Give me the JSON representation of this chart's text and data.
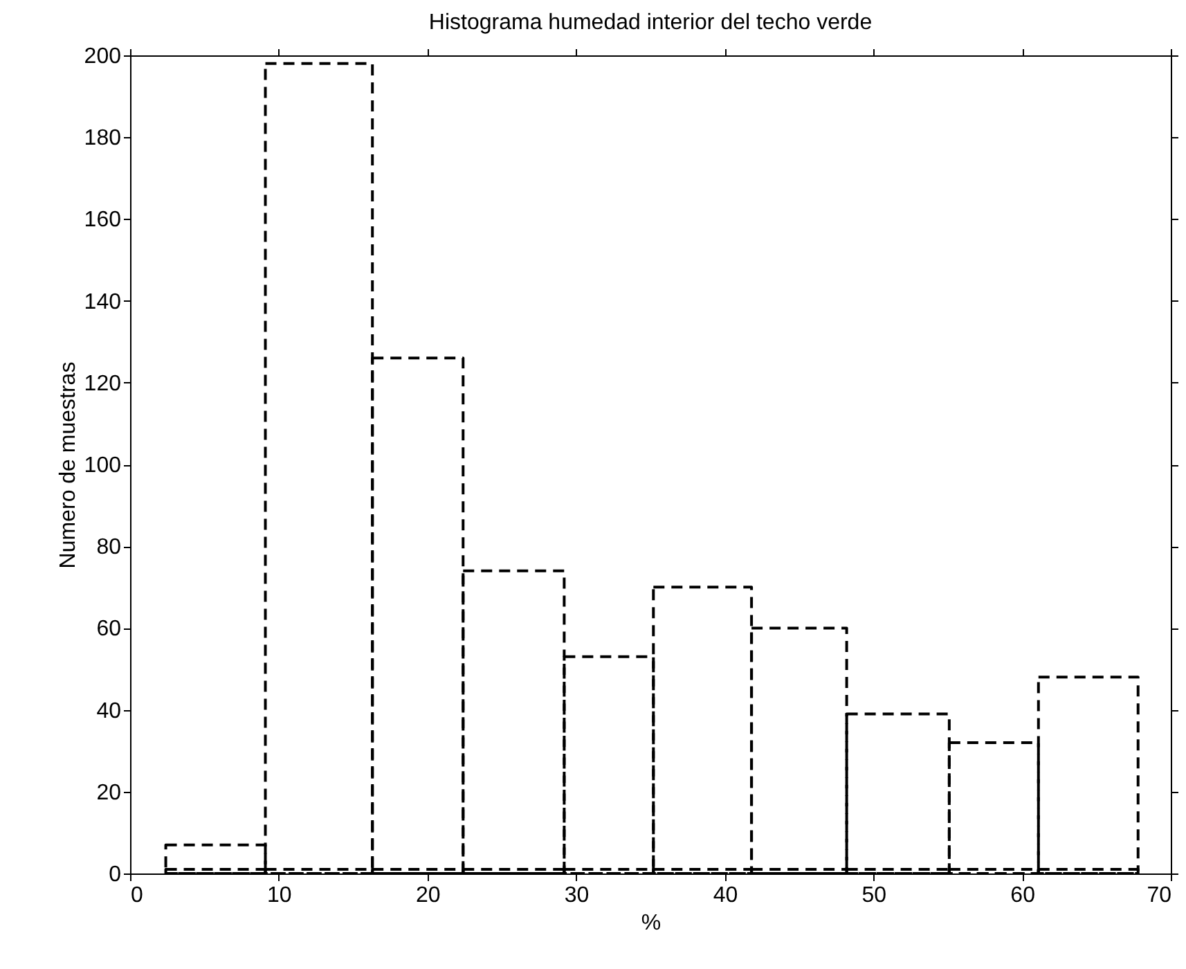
{
  "chart_data": {
    "type": "histogram",
    "title": "Histograma humedad interior del techo verde",
    "xlabel": "%",
    "ylabel": "Numero de muestras",
    "bins": [
      2.4,
      9.1,
      16.3,
      22.4,
      29.2,
      35.2,
      41.8,
      48.2,
      55.1,
      61.1,
      67.8
    ],
    "series": [
      {
        "color": "#000000",
        "line_style": "dashed",
        "values": [
          7,
          198,
          126,
          74,
          53,
          70,
          60,
          39,
          32,
          48
        ]
      },
      {
        "color": "#000000",
        "line_style": "dashed",
        "values": [
          1,
          1,
          1,
          1,
          1,
          1,
          1,
          1,
          1,
          1
        ]
      }
    ],
    "xlim": [
      0,
      70
    ],
    "xticks": [
      0,
      10,
      20,
      30,
      40,
      50,
      60,
      70
    ],
    "ylim": [
      0,
      200
    ],
    "yticks": [
      0,
      20,
      40,
      60,
      80,
      100,
      120,
      140,
      160,
      180,
      200
    ],
    "grid": false
  }
}
